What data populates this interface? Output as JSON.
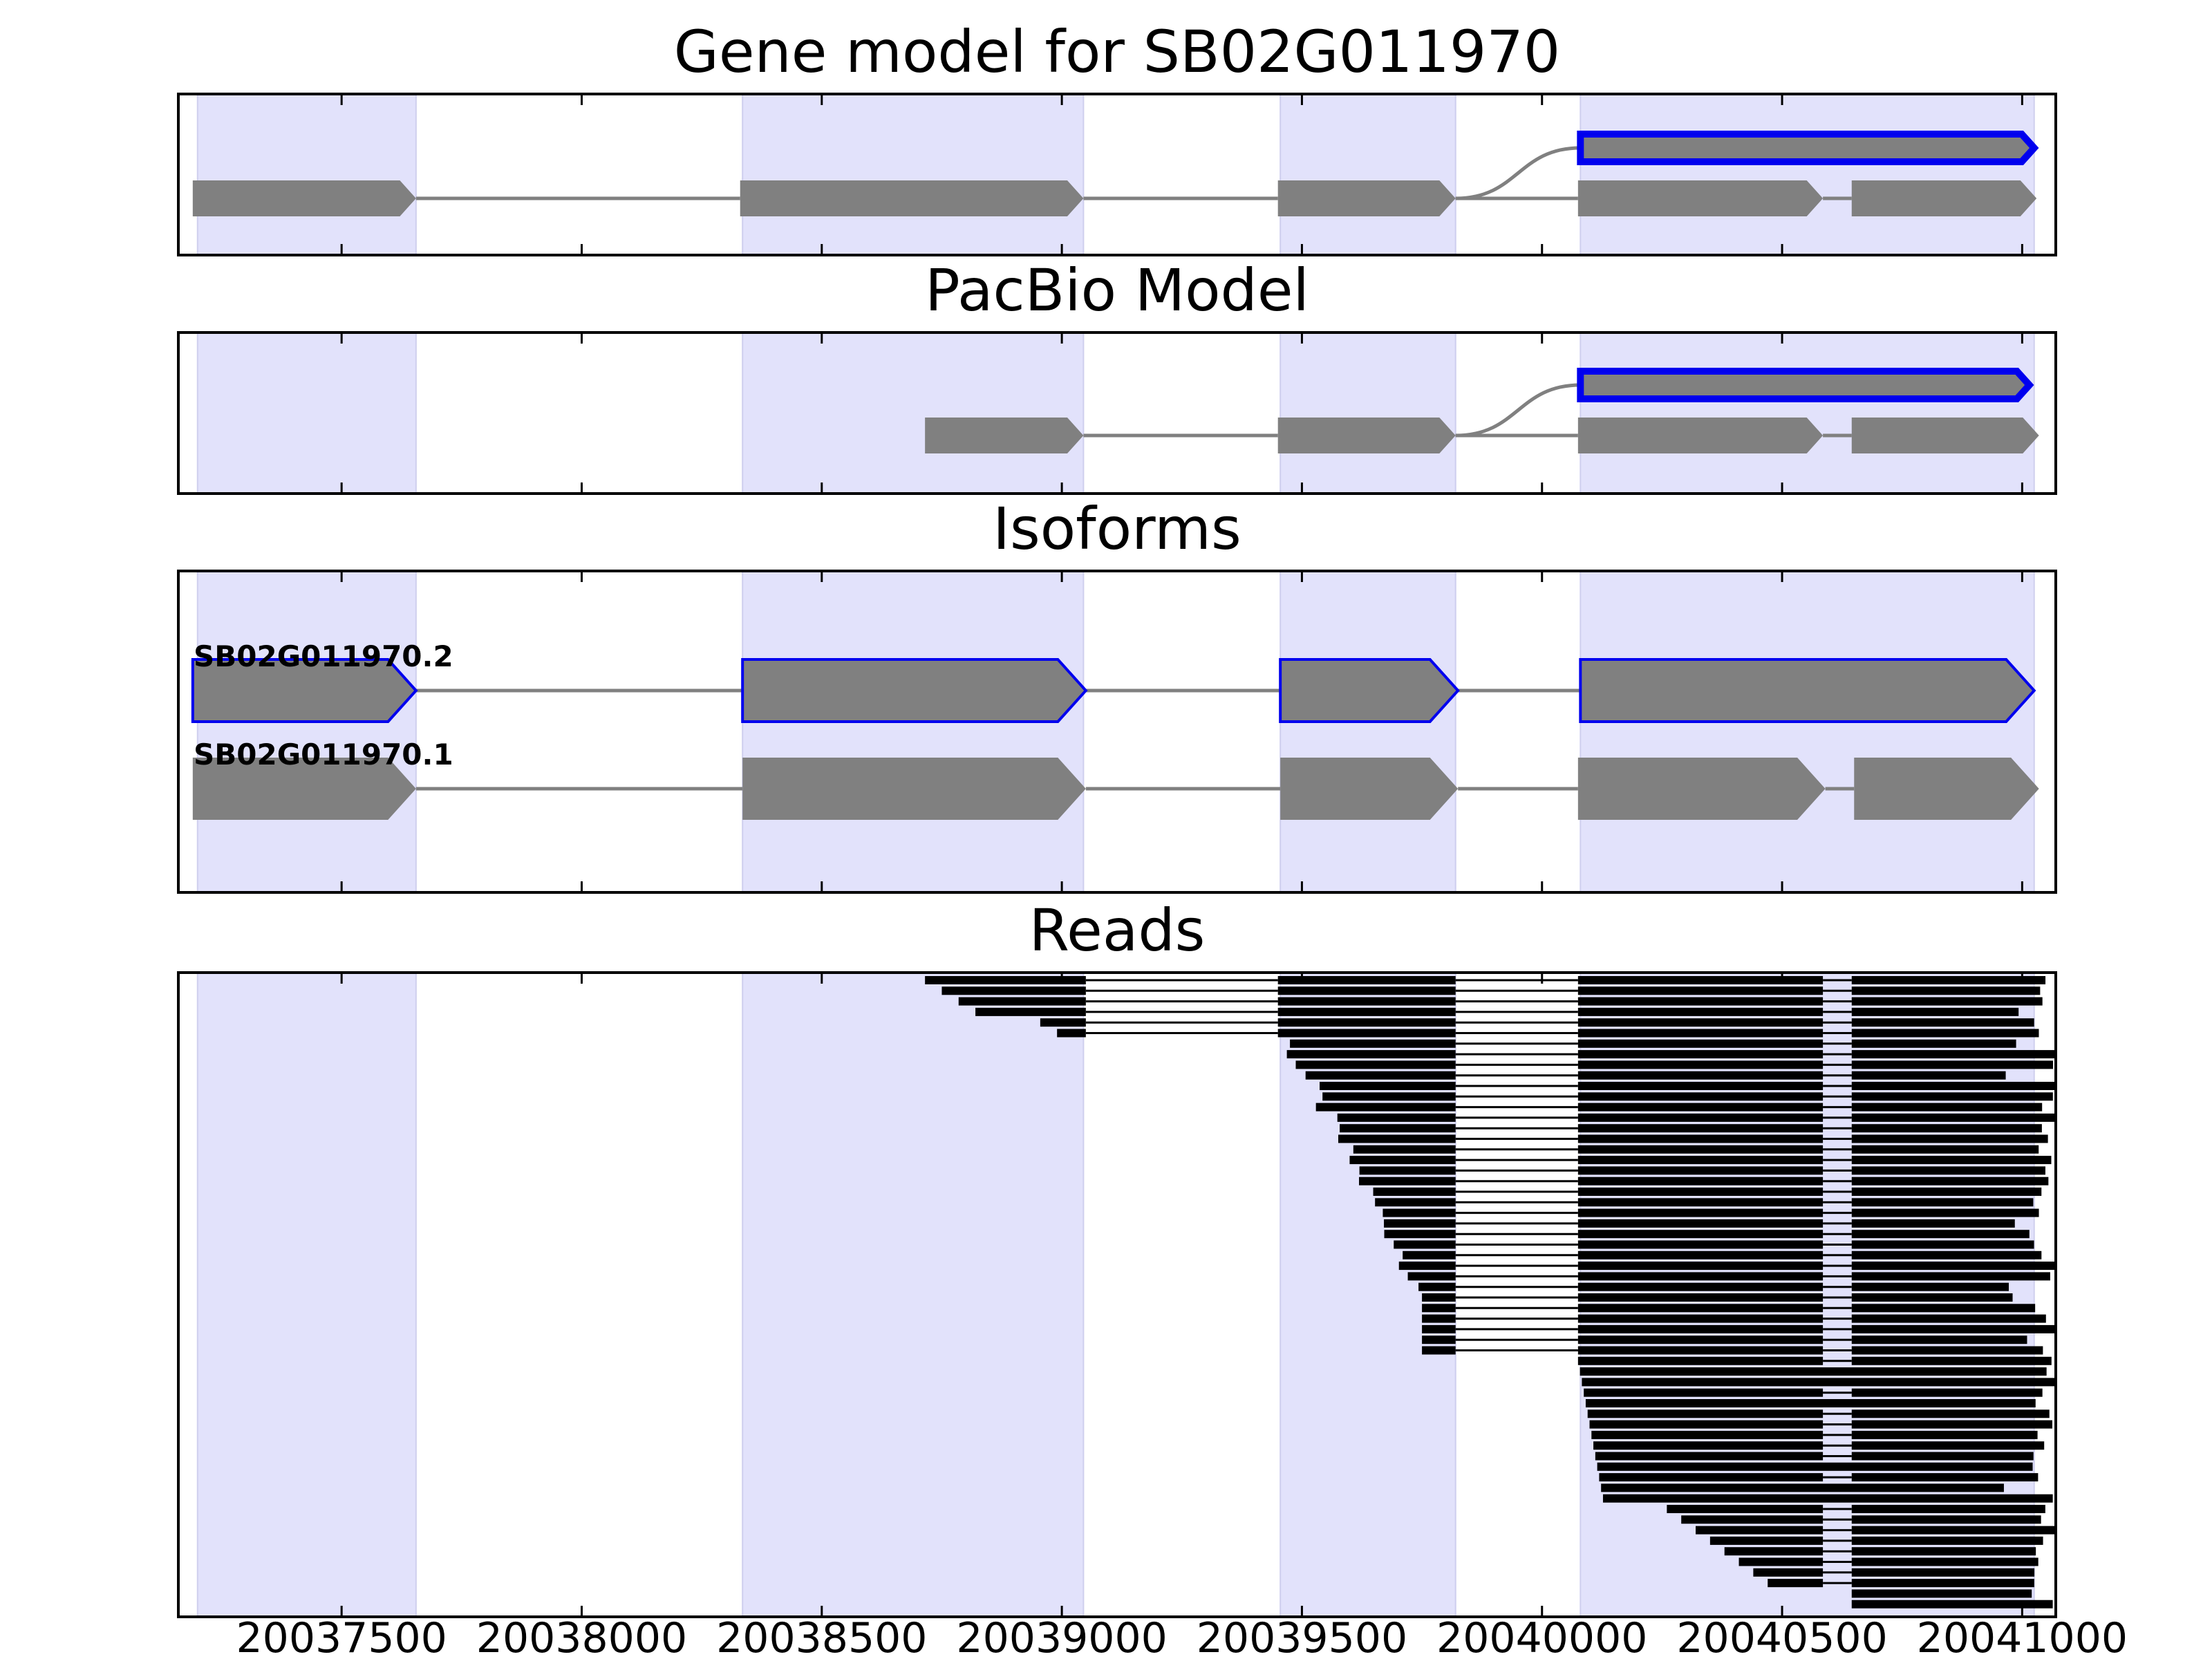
{
  "panels": [
    {
      "id": "gene-model",
      "title": "Gene model for SB02G011970"
    },
    {
      "id": "pacbio-model",
      "title": "PacBio Model"
    },
    {
      "id": "isoforms",
      "title": "Isoforms"
    },
    {
      "id": "reads",
      "title": "Reads"
    }
  ],
  "colors": {
    "highlight": "#e2e2fb",
    "exon": "#808080",
    "intron": "#808080",
    "selected_outline": "#0000ee",
    "read": "#000000"
  },
  "chart_data": {
    "type": "gene-structure",
    "xlim": [
      20037160,
      20041070
    ],
    "x_ticks": [
      20037500,
      20038000,
      20038500,
      20039000,
      20039500,
      20040000,
      20040500,
      20041000
    ],
    "x_tick_labels": [
      "20037500",
      "20038000",
      "20038500",
      "20039000",
      "20039500",
      "20040000",
      "20040500",
      "20041000"
    ],
    "highlight_regions": [
      [
        20037200,
        20037655
      ],
      [
        20038335,
        20039045
      ],
      [
        20039455,
        20039820
      ],
      [
        20040080,
        20041025
      ]
    ],
    "gene_model": {
      "transcripts": [
        {
          "exons": [
            [
              20040080,
              20041025
            ]
          ],
          "selected": true,
          "curve_from": 20039820
        },
        {
          "exons": [
            [
              20037190,
              20037655
            ],
            [
              20038330,
              20039045
            ],
            [
              20039450,
              20039820
            ],
            [
              20040075,
              20040585
            ],
            [
              20040645,
              20041030
            ]
          ],
          "selected": false
        }
      ]
    },
    "pacbio_model": {
      "transcripts": [
        {
          "exons": [
            [
              20040080,
              20041015
            ]
          ],
          "selected": true,
          "curve_from": 20039820
        },
        {
          "exons": [
            [
              20038715,
              20039045
            ],
            [
              20039450,
              20039820
            ],
            [
              20040075,
              20040585
            ],
            [
              20040645,
              20041035
            ]
          ],
          "selected": false
        }
      ]
    },
    "isoforms": [
      {
        "name": "SB02G011970.2",
        "exons": [
          [
            20037190,
            20037655
          ],
          [
            20038335,
            20039050
          ],
          [
            20039455,
            20039825
          ],
          [
            20040080,
            20041025
          ]
        ],
        "selected": true
      },
      {
        "name": "SB02G011970.1",
        "exons": [
          [
            20037190,
            20037655
          ],
          [
            20038335,
            20039050
          ],
          [
            20039455,
            20039825
          ],
          [
            20040075,
            20040590
          ],
          [
            20040650,
            20041035
          ]
        ],
        "selected": false
      }
    ]
  }
}
